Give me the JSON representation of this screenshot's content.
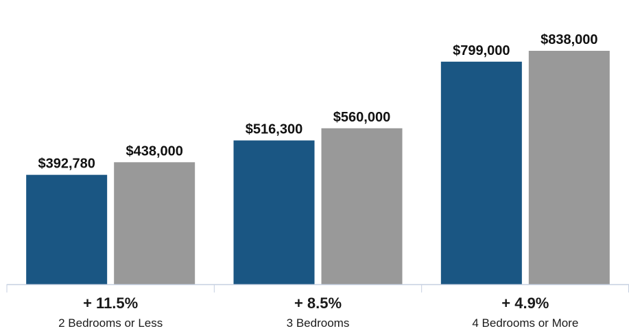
{
  "chart_data": {
    "type": "bar",
    "categories": [
      "2 Bedrooms or Less",
      "3 Bedrooms",
      "4 Bedrooms or More"
    ],
    "changes": [
      "+ 11.5%",
      "+ 8.5%",
      "+ 4.9%"
    ],
    "series": [
      {
        "values": [
          392780,
          516300,
          799000
        ],
        "labels": [
          "$392,780",
          "$516,300",
          "$799,000"
        ],
        "color": "#1a5683"
      },
      {
        "values": [
          438000,
          560000,
          838000
        ],
        "labels": [
          "$438,000",
          "$560,000",
          "$838,000"
        ],
        "color": "#999999"
      }
    ],
    "ylim": [
      0,
      900000
    ],
    "grid": false,
    "axis_color": "#c5cfe0"
  }
}
